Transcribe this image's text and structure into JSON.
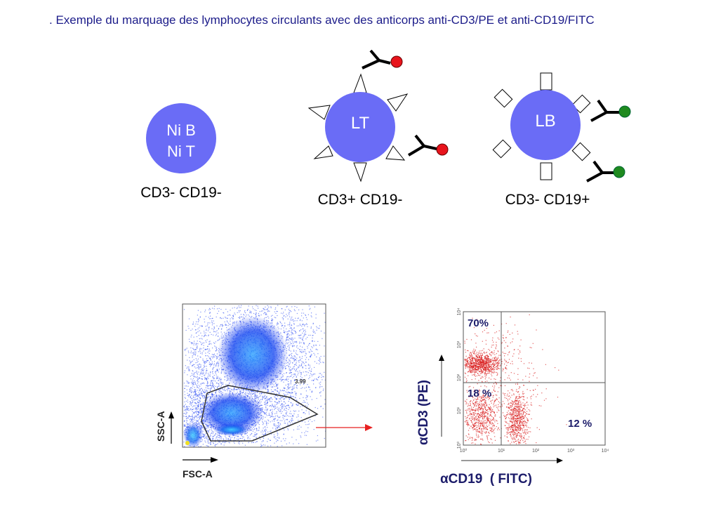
{
  "title": ". Exemple du marquage des lymphocytes circulants avec des anticorps anti-CD3/PE et anti-CD19/FITC",
  "cells": [
    {
      "line1": "Ni B",
      "line2": "Ni T",
      "label": "CD3- CD19-"
    },
    {
      "line1": "LT",
      "label": "CD3+ CD19-"
    },
    {
      "line1": "LB",
      "label": "CD3- CD19+"
    }
  ],
  "colors": {
    "cell": "#6a6cf6",
    "title": "#1c1c8a",
    "pe": "#e8141c",
    "fitc": "#1f8a1f",
    "dots_blue": "#1a3cf0",
    "dots_red": "#d91a1a",
    "arrow": "#e82020"
  },
  "plot1": {
    "xlabel": "FSC-A",
    "ylabel": "SSC-A",
    "gate_value": "3.99"
  },
  "plot2": {
    "xlabel": "αCD19  ( FITC)",
    "ylabel": "αCD3 (PE)",
    "ticks": [
      "10⁰",
      "10¹",
      "10²",
      "10³",
      "10⁴"
    ],
    "quadrants": {
      "upper_left": "70%",
      "lower_left": "18 %",
      "lower_right": "12 %"
    }
  }
}
